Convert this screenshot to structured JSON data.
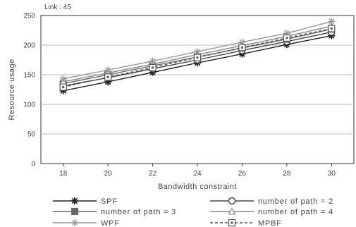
{
  "chart_data": {
    "type": "line",
    "title": "",
    "annotation": "Link : 45",
    "xlabel": "Bandwidth constraint",
    "ylabel": "Resource usage",
    "x": [
      18,
      20,
      22,
      24,
      26,
      28,
      30
    ],
    "xlim": [
      17,
      31
    ],
    "ylim": [
      0,
      250
    ],
    "yticks": [
      0,
      50,
      100,
      150,
      200,
      250
    ],
    "grid": "horizontal",
    "legend_position": "bottom",
    "series": [
      {
        "name": "SPF",
        "marker": "asterisk",
        "dash": "solid",
        "color": "#222222",
        "values": [
          123,
          138,
          154,
          170,
          185,
          201,
          216
        ]
      },
      {
        "name": "number of path = 2",
        "marker": "circle",
        "dash": "solid",
        "color": "#444444",
        "values": [
          131,
          145,
          160,
          175,
          191,
          206,
          222
        ]
      },
      {
        "name": "number of path = 3",
        "marker": "square",
        "dash": "solid",
        "color": "#666666",
        "values": [
          135,
          150,
          165,
          180,
          195,
          210,
          227
        ]
      },
      {
        "name": "number of path = 4",
        "marker": "triangle",
        "dash": "solid",
        "color": "#888888",
        "values": [
          138,
          153,
          168,
          184,
          199,
          215,
          232
        ]
      },
      {
        "name": "WPF",
        "marker": "star",
        "dash": "solid",
        "color": "#999999",
        "values": [
          143,
          158,
          173,
          189,
          205,
          220,
          240
        ]
      },
      {
        "name": "MPBF",
        "marker": "square-dot",
        "dash": "dashed",
        "color": "#555555",
        "values": [
          129,
          146,
          162,
          179,
          196,
          212,
          228
        ]
      }
    ]
  }
}
